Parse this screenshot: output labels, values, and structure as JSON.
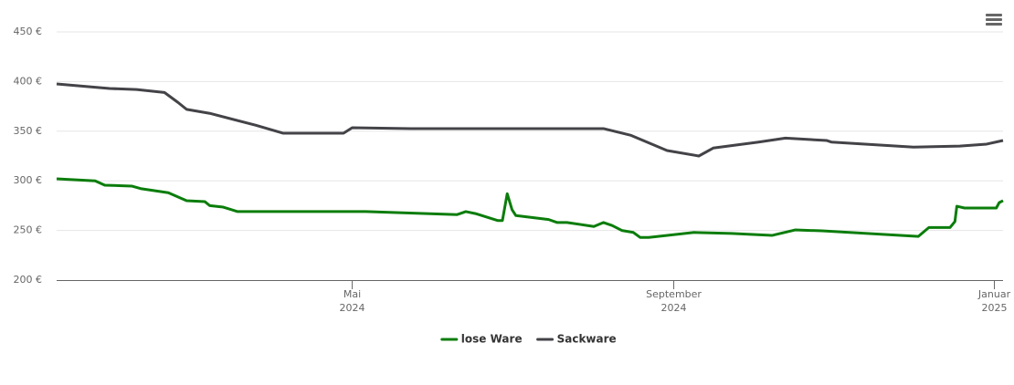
{
  "chart_data": {
    "type": "line",
    "ylim": [
      200,
      450
    ],
    "yticks": [
      {
        "value": 200,
        "label": "200 €"
      },
      {
        "value": 250,
        "label": "250 €"
      },
      {
        "value": 300,
        "label": "300 €"
      },
      {
        "value": 350,
        "label": "350 €"
      },
      {
        "value": 400,
        "label": "400 €"
      },
      {
        "value": 450,
        "label": "450 €"
      }
    ],
    "xlim": [
      2024.026,
      2025.009
    ],
    "xticks": [
      {
        "value": 2024.333,
        "label": "Mai 2024"
      },
      {
        "value": 2024.667,
        "label": "September 2024"
      },
      {
        "value": 2025.0,
        "label": "Januar 2025"
      }
    ],
    "grid": true,
    "legend": "bottom",
    "series": [
      {
        "name": "lose Ware",
        "color": "#0b7d0b",
        "x": [
          2024.026,
          2024.066,
          2024.076,
          2024.104,
          2024.114,
          2024.142,
          2024.161,
          2024.18,
          2024.185,
          2024.199,
          2024.214,
          2024.347,
          2024.442,
          2024.451,
          2024.461,
          2024.484,
          2024.489,
          2024.494,
          2024.499,
          2024.503,
          2024.537,
          2024.546,
          2024.556,
          2024.584,
          2024.594,
          2024.603,
          2024.613,
          2024.625,
          2024.632,
          2024.641,
          2024.688,
          2024.727,
          2024.769,
          2024.793,
          2024.821,
          2024.921,
          2024.932,
          2024.954,
          2024.959,
          2024.961,
          2024.969,
          2025.002,
          2025.005,
          2025.009
        ],
        "values": [
          302,
          300,
          295.6,
          294.7,
          292,
          288,
          280,
          279,
          275,
          273.5,
          269,
          269,
          266,
          269,
          267,
          260,
          260,
          287,
          271,
          265,
          261,
          258,
          258,
          254,
          258,
          255,
          250,
          248,
          243,
          243,
          248,
          247,
          245,
          250.5,
          249.6,
          244,
          253,
          253,
          259,
          274.4,
          272.6,
          272.6,
          278,
          280
        ]
      },
      {
        "name": "Sackware",
        "color": "#434348",
        "x": [
          2024.026,
          2024.081,
          2024.109,
          2024.138,
          2024.152,
          2024.161,
          2024.185,
          2024.233,
          2024.261,
          2024.324,
          2024.333,
          2024.394,
          2024.594,
          2024.622,
          2024.66,
          2024.693,
          2024.708,
          2024.755,
          2024.783,
          2024.826,
          2024.831,
          2024.916,
          2024.964,
          2024.992,
          2025.009
        ],
        "values": [
          397.6,
          393,
          392,
          389,
          379,
          372,
          368,
          356,
          348,
          348,
          353.5,
          352.6,
          352.6,
          346,
          330.5,
          325,
          333,
          339,
          343,
          340.6,
          339,
          334,
          335,
          337,
          340.6
        ]
      }
    ]
  }
}
